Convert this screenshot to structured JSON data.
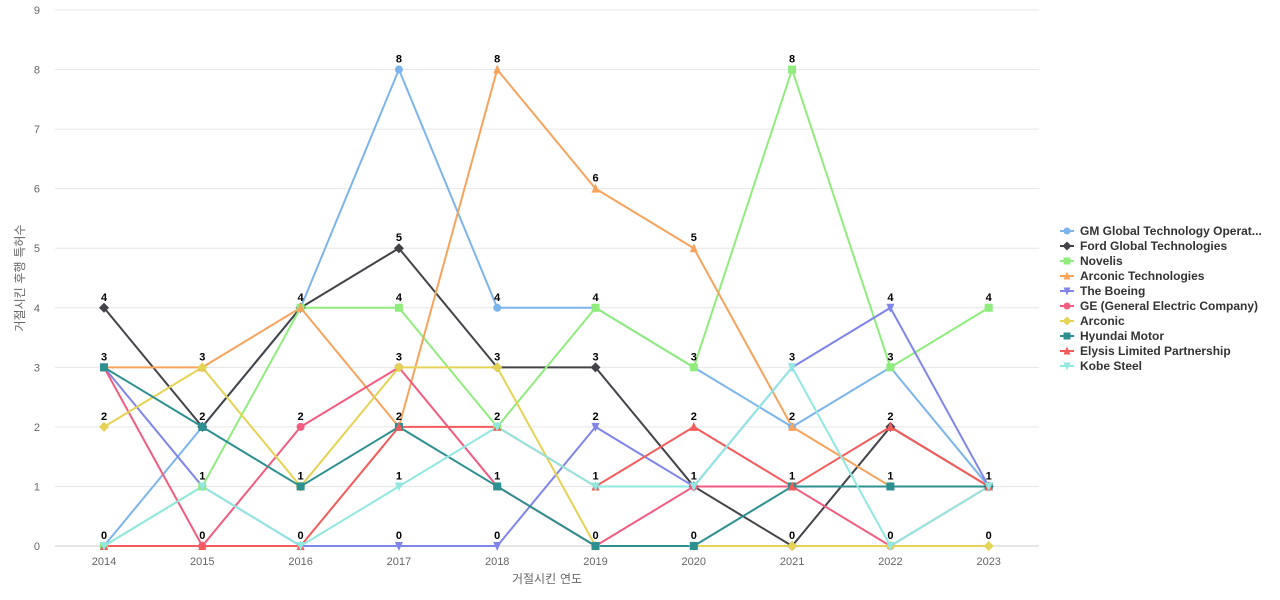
{
  "chart_data": {
    "type": "line",
    "xlabel": "거절시킨 연도",
    "ylabel": "거절시킨 후행 특허수",
    "ylim": [
      0,
      9
    ],
    "yticks": [
      0,
      1,
      2,
      3,
      4,
      5,
      6,
      7,
      8,
      9
    ],
    "x": [
      "2014",
      "2015",
      "2016",
      "2017",
      "2018",
      "2019",
      "2020",
      "2021",
      "2022",
      "2023"
    ],
    "grid": true,
    "legend_position": "right",
    "series": [
      {
        "name": "GM Global Technology Operat...",
        "color": "#7cb5ec",
        "marker": "circle",
        "values": [
          0,
          2,
          4,
          8,
          4,
          4,
          3,
          2,
          3,
          1
        ]
      },
      {
        "name": "Ford Global Technologies",
        "color": "#434348",
        "marker": "diamond",
        "values": [
          4,
          2,
          4,
          5,
          3,
          3,
          1,
          0,
          2,
          1
        ]
      },
      {
        "name": "Novelis",
        "color": "#90ed7d",
        "marker": "square",
        "values": [
          0,
          1,
          4,
          4,
          2,
          4,
          3,
          8,
          3,
          4
        ]
      },
      {
        "name": "Arconic Technologies",
        "color": "#f7a35c",
        "marker": "triangle",
        "values": [
          3,
          3,
          4,
          2,
          8,
          6,
          5,
          2,
          1,
          1
        ]
      },
      {
        "name": "The Boeing",
        "color": "#8085e9",
        "marker": "triangle-down",
        "values": [
          3,
          1,
          0,
          0,
          0,
          2,
          1,
          3,
          4,
          1
        ]
      },
      {
        "name": "GE (General Electric Company)",
        "color": "#f15c80",
        "marker": "circle",
        "values": [
          3,
          0,
          2,
          3,
          1,
          0,
          1,
          1,
          0,
          1
        ]
      },
      {
        "name": "Arconic",
        "color": "#e4d354",
        "marker": "diamond",
        "values": [
          2,
          3,
          1,
          3,
          3,
          0,
          0,
          0,
          0,
          0
        ]
      },
      {
        "name": "Hyundai Motor",
        "color": "#2b908f",
        "marker": "square",
        "values": [
          3,
          2,
          1,
          2,
          1,
          0,
          0,
          1,
          1,
          1
        ]
      },
      {
        "name": "Elysis Limited Partnership",
        "color": "#f45b5b",
        "marker": "triangle",
        "values": [
          0,
          0,
          0,
          2,
          2,
          1,
          2,
          1,
          2,
          1
        ]
      },
      {
        "name": "Kobe Steel",
        "color": "#91e8e1",
        "marker": "triangle-down",
        "values": [
          0,
          1,
          0,
          1,
          2,
          1,
          1,
          3,
          0,
          1
        ]
      }
    ],
    "data_labels": [
      {
        "x": "2014",
        "value": 4
      },
      {
        "x": "2014",
        "value": 3
      },
      {
        "x": "2014",
        "value": 2
      },
      {
        "x": "2014",
        "value": 0
      },
      {
        "x": "2015",
        "value": 3
      },
      {
        "x": "2015",
        "value": 2
      },
      {
        "x": "2015",
        "value": 1
      },
      {
        "x": "2015",
        "value": 0
      },
      {
        "x": "2016",
        "value": 4
      },
      {
        "x": "2016",
        "value": 2
      },
      {
        "x": "2016",
        "value": 1
      },
      {
        "x": "2016",
        "value": 0
      },
      {
        "x": "2017",
        "value": 8
      },
      {
        "x": "2017",
        "value": 5
      },
      {
        "x": "2017",
        "value": 4
      },
      {
        "x": "2017",
        "value": 3
      },
      {
        "x": "2017",
        "value": 2
      },
      {
        "x": "2017",
        "value": 1
      },
      {
        "x": "2017",
        "value": 0
      },
      {
        "x": "2018",
        "value": 8
      },
      {
        "x": "2018",
        "value": 4
      },
      {
        "x": "2018",
        "value": 3
      },
      {
        "x": "2018",
        "value": 2
      },
      {
        "x": "2018",
        "value": 1
      },
      {
        "x": "2018",
        "value": 0
      },
      {
        "x": "2019",
        "value": 6
      },
      {
        "x": "2019",
        "value": 4
      },
      {
        "x": "2019",
        "value": 3
      },
      {
        "x": "2019",
        "value": 2
      },
      {
        "x": "2019",
        "value": 1
      },
      {
        "x": "2019",
        "value": 0
      },
      {
        "x": "2020",
        "value": 5
      },
      {
        "x": "2020",
        "value": 3
      },
      {
        "x": "2020",
        "value": 2
      },
      {
        "x": "2020",
        "value": 1
      },
      {
        "x": "2020",
        "value": 0
      },
      {
        "x": "2021",
        "value": 8
      },
      {
        "x": "2021",
        "value": 3
      },
      {
        "x": "2021",
        "value": 2
      },
      {
        "x": "2021",
        "value": 1
      },
      {
        "x": "2021",
        "value": 0
      },
      {
        "x": "2022",
        "value": 4
      },
      {
        "x": "2022",
        "value": 3
      },
      {
        "x": "2022",
        "value": 2
      },
      {
        "x": "2022",
        "value": 1
      },
      {
        "x": "2022",
        "value": 0
      },
      {
        "x": "2023",
        "value": 4
      },
      {
        "x": "2023",
        "value": 1
      },
      {
        "x": "2023",
        "value": 0
      }
    ]
  }
}
